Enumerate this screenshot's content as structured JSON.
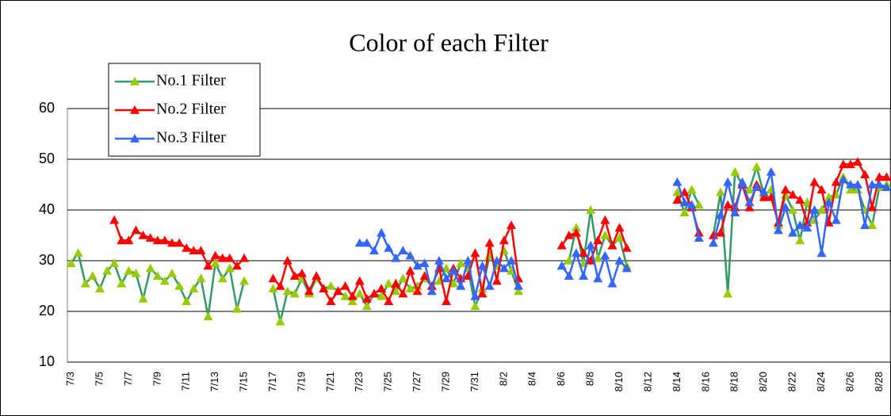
{
  "chart_data": {
    "type": "line",
    "title": "Color of each Filter",
    "categories": [
      "7/3",
      null,
      null,
      null,
      "7/5",
      null,
      null,
      null,
      "7/7",
      null,
      null,
      null,
      "7/9",
      null,
      null,
      null,
      "7/11",
      null,
      null,
      null,
      "7/13",
      null,
      null,
      null,
      "7/15",
      null,
      null,
      null,
      "7/17",
      null,
      null,
      null,
      "7/19",
      null,
      null,
      null,
      "7/21",
      null,
      null,
      null,
      "7/23",
      null,
      null,
      null,
      "7/25",
      null,
      null,
      null,
      "7/27",
      null,
      null,
      null,
      "7/29",
      null,
      null,
      null,
      "7/31",
      null,
      null,
      null,
      "8/2",
      null,
      null,
      null,
      "8/4",
      null,
      null,
      null,
      "8/6",
      null,
      null,
      null,
      "8/8",
      null,
      null,
      null,
      "8/10",
      null,
      null,
      null,
      "8/12",
      null,
      null,
      null,
      "8/14",
      null,
      null,
      null,
      "8/16",
      null,
      null,
      null,
      "8/18",
      null,
      null,
      null,
      "8/20",
      null,
      null,
      null,
      "8/22",
      null,
      null,
      null,
      "8/24",
      null,
      null,
      null,
      "8/26",
      null,
      null,
      null,
      "8/28",
      null
    ],
    "series": [
      {
        "name": "No.1 Filter",
        "color": "#339966",
        "marker_color": "#99cc00",
        "values": [
          29.5,
          31.5,
          25.5,
          27,
          24.5,
          28,
          29.5,
          25.5,
          28,
          27.5,
          22.5,
          28.5,
          27,
          26,
          27.5,
          25,
          22,
          24.5,
          26.5,
          19,
          29.5,
          26.5,
          28.5,
          20.5,
          26,
          null,
          null,
          null,
          24.5,
          18,
          24,
          23.5,
          26.5,
          23.5,
          26.5,
          24.5,
          25,
          24,
          23,
          22,
          23.5,
          21,
          23.5,
          23,
          25.5,
          24,
          26.5,
          24.5,
          25,
          26.5,
          25,
          26,
          28.5,
          25.5,
          29.5,
          28.5,
          21,
          24.5,
          31,
          29,
          32,
          28,
          24,
          null,
          null,
          null,
          null,
          null,
          29,
          30,
          36.5,
          29.5,
          40,
          30.5,
          35,
          33,
          34.5,
          29,
          null,
          null,
          null,
          null,
          null,
          null,
          43.5,
          39.5,
          44,
          41,
          null,
          35,
          43.5,
          23.5,
          47.5,
          45,
          44,
          48.5,
          43,
          44,
          37,
          43,
          40,
          34,
          41.5,
          38,
          40,
          42.5,
          43,
          46.5,
          44,
          44,
          40,
          37,
          44.5,
          45
        ]
      },
      {
        "name": "No.2 Filter",
        "color": "#ff0000",
        "marker_color": "#ff0000",
        "values": [
          null,
          null,
          null,
          null,
          null,
          null,
          38,
          34,
          34,
          36,
          35,
          34.5,
          34,
          34,
          33.5,
          33.5,
          32.5,
          32,
          32,
          29,
          31,
          30.5,
          30.5,
          29,
          30.5,
          null,
          null,
          null,
          26.5,
          25,
          30,
          27,
          27.5,
          24,
          27,
          24.5,
          22,
          24,
          25,
          23,
          26,
          22.5,
          23.5,
          24.5,
          22,
          25.5,
          23.5,
          28,
          24,
          27,
          25,
          28.5,
          22,
          28.5,
          26.5,
          27,
          31.5,
          23.5,
          33.5,
          26,
          34,
          37,
          26.5,
          null,
          null,
          null,
          null,
          null,
          33,
          35,
          35.5,
          31.5,
          30,
          34,
          38,
          33,
          36.5,
          32.5,
          null,
          null,
          null,
          null,
          null,
          null,
          42,
          43.5,
          40.5,
          35.5,
          null,
          35,
          35.5,
          41,
          40.5,
          45,
          40.5,
          45,
          42.5,
          42.5,
          37.5,
          44,
          43,
          42,
          37.5,
          45.5,
          44,
          37.5,
          45.5,
          49,
          49,
          49.5,
          47,
          40.5,
          46.5,
          46.5
        ]
      },
      {
        "name": "No.3 Filter",
        "color": "#3366ff",
        "marker_color": "#3366ff",
        "values": [
          null,
          null,
          null,
          null,
          null,
          null,
          null,
          null,
          null,
          null,
          null,
          null,
          null,
          null,
          null,
          null,
          null,
          null,
          null,
          null,
          null,
          null,
          null,
          null,
          null,
          null,
          null,
          null,
          null,
          null,
          null,
          null,
          null,
          null,
          null,
          null,
          null,
          null,
          null,
          null,
          33.5,
          33.5,
          32,
          35.5,
          32.5,
          30.5,
          32,
          31,
          29,
          29.5,
          24,
          30,
          26.5,
          28,
          25,
          30,
          23,
          29,
          25,
          30,
          28.5,
          30,
          25,
          null,
          null,
          null,
          null,
          null,
          29,
          27,
          31.5,
          27,
          33,
          26.5,
          31,
          25.5,
          30,
          28.5,
          null,
          null,
          null,
          null,
          null,
          null,
          45.5,
          41.5,
          41,
          34.5,
          null,
          33.5,
          39,
          45.5,
          39.5,
          45.5,
          41.5,
          44.5,
          43.5,
          47.5,
          36,
          40.5,
          35.5,
          37,
          36.5,
          40,
          31.5,
          41.5,
          38,
          46,
          45,
          45,
          37,
          45,
          45,
          44.5
        ]
      }
    ],
    "ylim": [
      10,
      60
    ],
    "yticks": [
      10,
      20,
      30,
      40,
      50,
      60
    ],
    "grid": true,
    "legend": "top-left"
  }
}
